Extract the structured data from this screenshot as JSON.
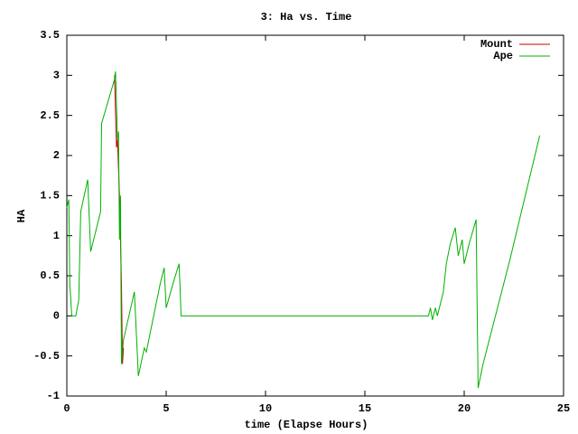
{
  "chart_data": {
    "type": "line",
    "title": "3: Ha vs. Time",
    "x_label": "time (Elapse Hours)",
    "y_label": "HA",
    "xlim": [
      0,
      25
    ],
    "xticks": [
      0,
      5,
      10,
      15,
      20,
      25
    ],
    "ylim": [
      -1,
      3.5
    ],
    "yticks": [
      -1,
      -0.5,
      0,
      0.5,
      1,
      1.5,
      2,
      2.5,
      3,
      3.5
    ],
    "grid": false,
    "legend": "top-right",
    "series": [
      {
        "name": "Mount",
        "color": "#cc0000",
        "x": [
          2.4,
          2.5,
          2.55,
          2.65,
          2.7,
          2.75,
          2.8,
          2.85
        ],
        "values": [
          3.0,
          2.1,
          2.2,
          1.5,
          0.95,
          0.4,
          -0.6,
          -0.4
        ]
      },
      {
        "name": "Ape",
        "color": "#00b000",
        "x": [
          0,
          0.1,
          0.15,
          0.25,
          0.45,
          0.6,
          0.7,
          1.05,
          1.2,
          1.7,
          1.75,
          2.4,
          2.45,
          2.55,
          2.6,
          2.65,
          2.7,
          2.75,
          2.85,
          3.4,
          3.6,
          3.9,
          4.0,
          4.7,
          4.9,
          5.0,
          5.4,
          5.65,
          5.7,
          5.75,
          18.2,
          18.3,
          18.4,
          18.55,
          18.65,
          18.95,
          19.1,
          19.3,
          19.55,
          19.7,
          19.9,
          20.0,
          20.25,
          20.6,
          20.7,
          20.95,
          22.3,
          23.8
        ],
        "values": [
          1.35,
          1.45,
          0.4,
          0,
          0,
          0.2,
          1.3,
          1.7,
          0.8,
          1.3,
          2.4,
          2.95,
          3.05,
          2.2,
          2.3,
          0.95,
          1.5,
          -0.6,
          -0.3,
          0.3,
          -0.75,
          -0.4,
          -0.45,
          0.4,
          0.6,
          0.1,
          0.45,
          0.65,
          0.35,
          0,
          0,
          0.1,
          -0.05,
          0.1,
          0,
          0.3,
          0.65,
          0.9,
          1.1,
          0.75,
          0.95,
          0.65,
          0.9,
          1.2,
          -0.9,
          -0.6,
          0.7,
          2.25
        ]
      }
    ]
  }
}
